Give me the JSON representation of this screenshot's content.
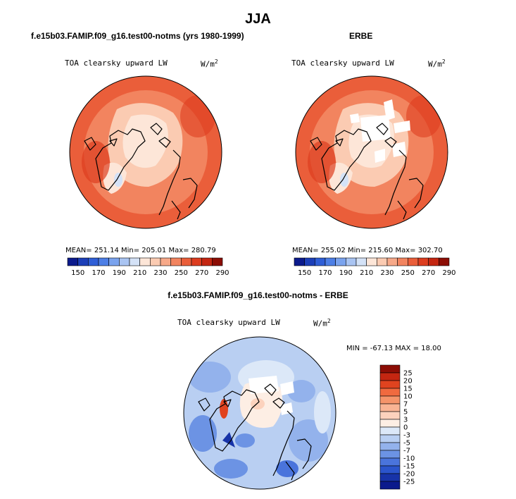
{
  "figure": {
    "title": "JJA"
  },
  "chart_data": [
    {
      "type": "heatmap",
      "projection": "north polar stereographic",
      "title": "f.e15b03.FAMIP.f09_g16.test00-notms (yrs 1980-1999)",
      "variable": "TOA clearsky upward LW",
      "units": "W/m",
      "units_exp": "2",
      "stats": {
        "mean": 251.14,
        "min": 205.01,
        "max": 280.79
      },
      "stats_text": "MEAN= 251.14   Min= 205.01   Max= 280.79",
      "colorbar": {
        "orientation": "horizontal",
        "levels": [
          150,
          170,
          190,
          210,
          230,
          250,
          270,
          290
        ],
        "colors": [
          "#0b1a8c",
          "#1c3fb8",
          "#2f5ed6",
          "#4d7fe6",
          "#7aa3ee",
          "#a9c4f2",
          "#d4e2f7",
          "#fde6d8",
          "#fbcbb2",
          "#f7a989",
          "#f2845f",
          "#ea5e3a",
          "#dd3d1f",
          "#c42611",
          "#8c0d05"
        ]
      }
    },
    {
      "type": "heatmap",
      "projection": "north polar stereographic",
      "title": "ERBE",
      "variable": "TOA clearsky upward LW",
      "units": "W/m",
      "units_exp": "2",
      "stats": {
        "mean": 255.02,
        "min": 215.6,
        "max": 302.7
      },
      "stats_text": "MEAN= 255.02   Min= 215.60   Max= 302.70",
      "colorbar": {
        "orientation": "horizontal",
        "levels": [
          150,
          170,
          190,
          210,
          230,
          250,
          270,
          290
        ],
        "colors": [
          "#0b1a8c",
          "#1c3fb8",
          "#2f5ed6",
          "#4d7fe6",
          "#7aa3ee",
          "#a9c4f2",
          "#d4e2f7",
          "#fde6d8",
          "#fbcbb2",
          "#f7a989",
          "#f2845f",
          "#ea5e3a",
          "#dd3d1f",
          "#c42611",
          "#8c0d05"
        ]
      }
    },
    {
      "type": "heatmap",
      "projection": "north polar stereographic",
      "title": "f.e15b03.FAMIP.f09_g16.test00-notms - ERBE",
      "variable": "TOA clearsky upward LW",
      "units": "W/m",
      "units_exp": "2",
      "stats": {
        "min": -67.13,
        "max": 18.0
      },
      "stats_text": "MIN = -67.13 MAX =  18.00",
      "colorbar": {
        "orientation": "vertical",
        "levels": [
          25,
          20,
          15,
          10,
          7,
          5,
          3,
          0,
          -3,
          -5,
          -7,
          -10,
          -15,
          -20,
          -25
        ],
        "colors": [
          "#8c0d05",
          "#c42611",
          "#e0431f",
          "#f06a3f",
          "#f5946a",
          "#f9b494",
          "#fcd2bd",
          "#fdeee4",
          "#dce8f8",
          "#b9cff2",
          "#93b2ec",
          "#6c93e4",
          "#4a74dc",
          "#2b55cc",
          "#1733a8",
          "#0b1a8c"
        ]
      }
    }
  ]
}
